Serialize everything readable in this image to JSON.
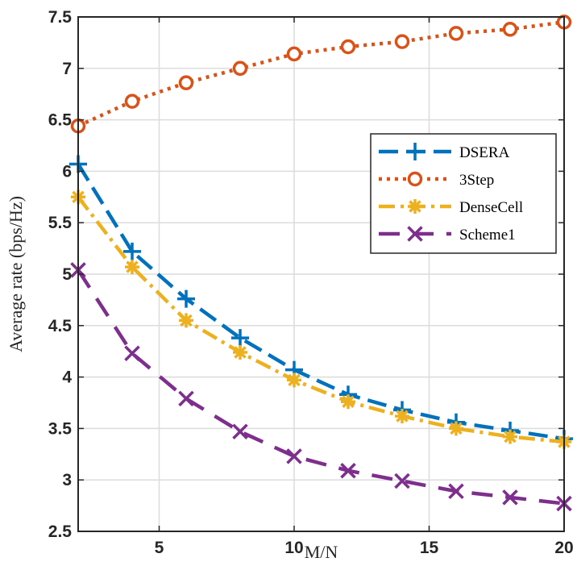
{
  "chart_data": {
    "type": "line",
    "xlabel": "M/N",
    "ylabel": "Average rate (bps/Hz)",
    "xlim": [
      2,
      20
    ],
    "ylim": [
      2.5,
      7.5
    ],
    "xticks": [
      5,
      10,
      15,
      20
    ],
    "xtick_labels": [
      "5",
      "10",
      "15",
      "20"
    ],
    "yticks": [
      2.5,
      3,
      3.5,
      4,
      4.5,
      5,
      5.5,
      6,
      6.5,
      7,
      7.5
    ],
    "ytick_labels": [
      "2.5",
      "3",
      "3.5",
      "4",
      "4.5",
      "5",
      "5.5",
      "6",
      "6.5",
      "7",
      "7.5"
    ],
    "grid": true,
    "legend_position": "right",
    "x": [
      2,
      4,
      6,
      8,
      10,
      12,
      14,
      16,
      18,
      20
    ],
    "series": [
      {
        "name": "DSERA",
        "color": "#0072BD",
        "dash": "dashed",
        "marker": "plus",
        "values": [
          6.07,
          5.22,
          4.76,
          4.38,
          4.07,
          3.83,
          3.68,
          3.56,
          3.48,
          3.4
        ]
      },
      {
        "name": "3Step",
        "color": "#D95319",
        "dash": "dotted",
        "marker": "circle",
        "values": [
          6.44,
          6.68,
          6.86,
          7.0,
          7.14,
          7.21,
          7.26,
          7.34,
          7.38,
          7.45
        ]
      },
      {
        "name": "DenseCell",
        "color": "#EDB120",
        "dash": "dashdot",
        "marker": "asterisk",
        "values": [
          5.75,
          5.07,
          4.55,
          4.24,
          3.97,
          3.76,
          3.62,
          3.5,
          3.42,
          3.37
        ]
      },
      {
        "name": "Scheme1",
        "color": "#7E2F8E",
        "dash": "longdash",
        "marker": "cross",
        "values": [
          5.04,
          4.23,
          3.79,
          3.47,
          3.23,
          3.09,
          2.99,
          2.89,
          2.83,
          2.77
        ]
      }
    ]
  }
}
